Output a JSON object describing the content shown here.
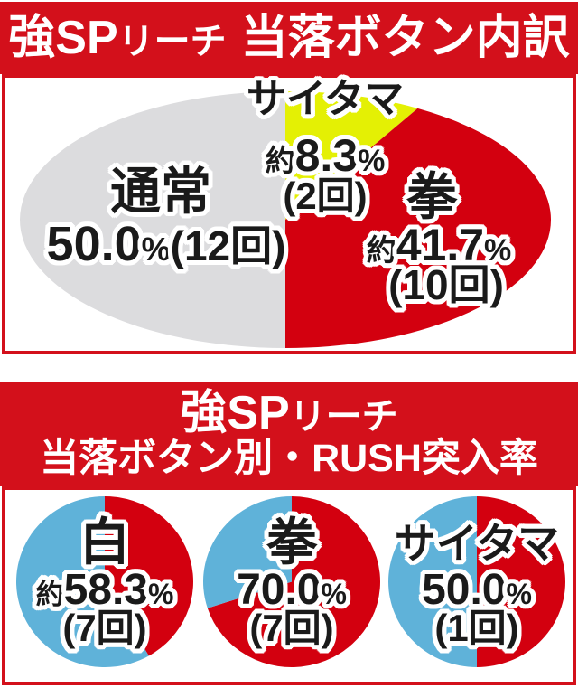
{
  "colors": {
    "banner": "#d3101b",
    "panel_border": "#d3101b",
    "red": "#d3000f",
    "blue": "#5fb2d9",
    "gray": "#dcdcde",
    "yellow": "#e4f004",
    "text": "#1a1a1a",
    "banner_text": "#ffffff"
  },
  "header1": {
    "part1": "強SP",
    "part2": "リーチ",
    "part3": "当落ボタン内訳"
  },
  "header2": {
    "line1_part1": "強SP",
    "line1_part2": "リーチ",
    "line2": "当落ボタン別・RUSH突入率"
  },
  "chart_data": [
    {
      "type": "pie",
      "shape": "ellipse",
      "title": "強SPリーチ 当落ボタン内訳",
      "start": "top",
      "direction": "clockwise",
      "slices": [
        {
          "name": "サイタマ",
          "value": 8.3,
          "approx": "約",
          "number": "8.3",
          "unit": "%",
          "count": "(2回)",
          "color_key": "yellow"
        },
        {
          "name": "拳",
          "value": 41.7,
          "approx": "約",
          "number": "41.7",
          "unit": "%",
          "count": "(10回)",
          "color_key": "red"
        },
        {
          "name": "通常",
          "value": 50.0,
          "approx": "",
          "number": "50.0",
          "unit": "%",
          "count": "(12回)",
          "color_key": "gray"
        }
      ]
    },
    {
      "type": "pie",
      "shape": "circle",
      "section_title": "強SPリーチ 当落ボタン別・RUSH突入率",
      "title": "白",
      "button": "白",
      "approx": "約",
      "number": "58.3",
      "unit": "%",
      "count": "(7回)",
      "rate_value": 58.3,
      "start": "top",
      "direction": "clockwise",
      "slices": [
        {
          "value": 41.7,
          "color_key": "red"
        },
        {
          "value": 58.3,
          "color_key": "blue"
        }
      ]
    },
    {
      "type": "pie",
      "shape": "circle",
      "section_title": "強SPリーチ 当落ボタン別・RUSH突入率",
      "title": "拳",
      "button": "拳",
      "approx": "",
      "number": "70.0",
      "unit": "%",
      "count": "(7回)",
      "rate_value": 70.0,
      "start": "top",
      "direction": "clockwise",
      "slices": [
        {
          "value": 70.0,
          "color_key": "red"
        },
        {
          "value": 30.0,
          "color_key": "blue"
        }
      ]
    },
    {
      "type": "pie",
      "shape": "circle",
      "section_title": "強SPリーチ 当落ボタン別・RUSH突入率",
      "title": "サイタマ",
      "button": "サイタマ",
      "approx": "",
      "number": "50.0",
      "unit": "%",
      "count": "(1回)",
      "rate_value": 50.0,
      "start": "top",
      "direction": "clockwise",
      "slices": [
        {
          "value": 50.0,
          "color_key": "red"
        },
        {
          "value": 50.0,
          "color_key": "blue"
        }
      ]
    }
  ]
}
